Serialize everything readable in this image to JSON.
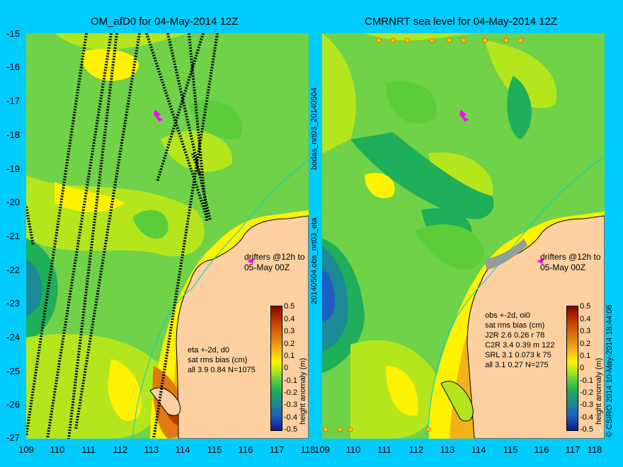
{
  "left_panel": {
    "title": "OM_afD0 for 04-May-2014 12Z",
    "side_label": "bodas_nrt03_20140504",
    "drifter_note": [
      "drifters @12h to",
      "05-May 00Z"
    ],
    "stats": [
      "eta +-2d, d0",
      "sat rms bias (cm)",
      "all 3.9 0.84 N=1075"
    ]
  },
  "right_panel": {
    "title": "CMRNRT sea level  for 04-May-2014 12Z",
    "side_label": "20140504.obs_nrt03_eta",
    "drifter_note": [
      "drifters @12h to",
      "05-May 00Z"
    ],
    "stats": [
      "obs +-2d, oi0",
      "sat rms bias (cm)",
      "J2R   2.6 0.26 r 78",
      "C2R   3.4 0.39 m 122",
      "SRL   3.1 0.073 k 75",
      "all   3.1 0.27 N=275"
    ]
  },
  "y_ticks": [
    "-15",
    "-16",
    "-17",
    "-18",
    "-19",
    "-20",
    "-21",
    "-22",
    "-23",
    "-24",
    "-25",
    "-26",
    "-27"
  ],
  "x_ticks": [
    "109",
    "110",
    "111",
    "112",
    "113",
    "114",
    "115",
    "116",
    "117",
    "118"
  ],
  "colorbar": {
    "label": "height anomaly (m)",
    "ticks": [
      "0.5",
      "0.4",
      "0.3",
      "0.2",
      "0.1",
      "0",
      "-0.1",
      "-0.2",
      "-0.3",
      "-0.4",
      "-0.5"
    ],
    "colors": [
      "#8b0000",
      "#c33a00",
      "#e07b10",
      "#f2b21a",
      "#fff200",
      "#b5e61d",
      "#5ccd3a",
      "#1fae5a",
      "#1b8a94",
      "#1d5fc0",
      "#0a1a8c"
    ]
  },
  "credit": "© CSIRO 2014   10-May-2014 18:44:06",
  "colors": {
    "background": "#00ccff",
    "land": "#fcd0a0",
    "ocean_mid": "#6fd248",
    "coast_line": "#00d0d0"
  },
  "map_extent": {
    "lon": [
      109,
      118
    ],
    "lat": [
      -27,
      -15
    ]
  }
}
